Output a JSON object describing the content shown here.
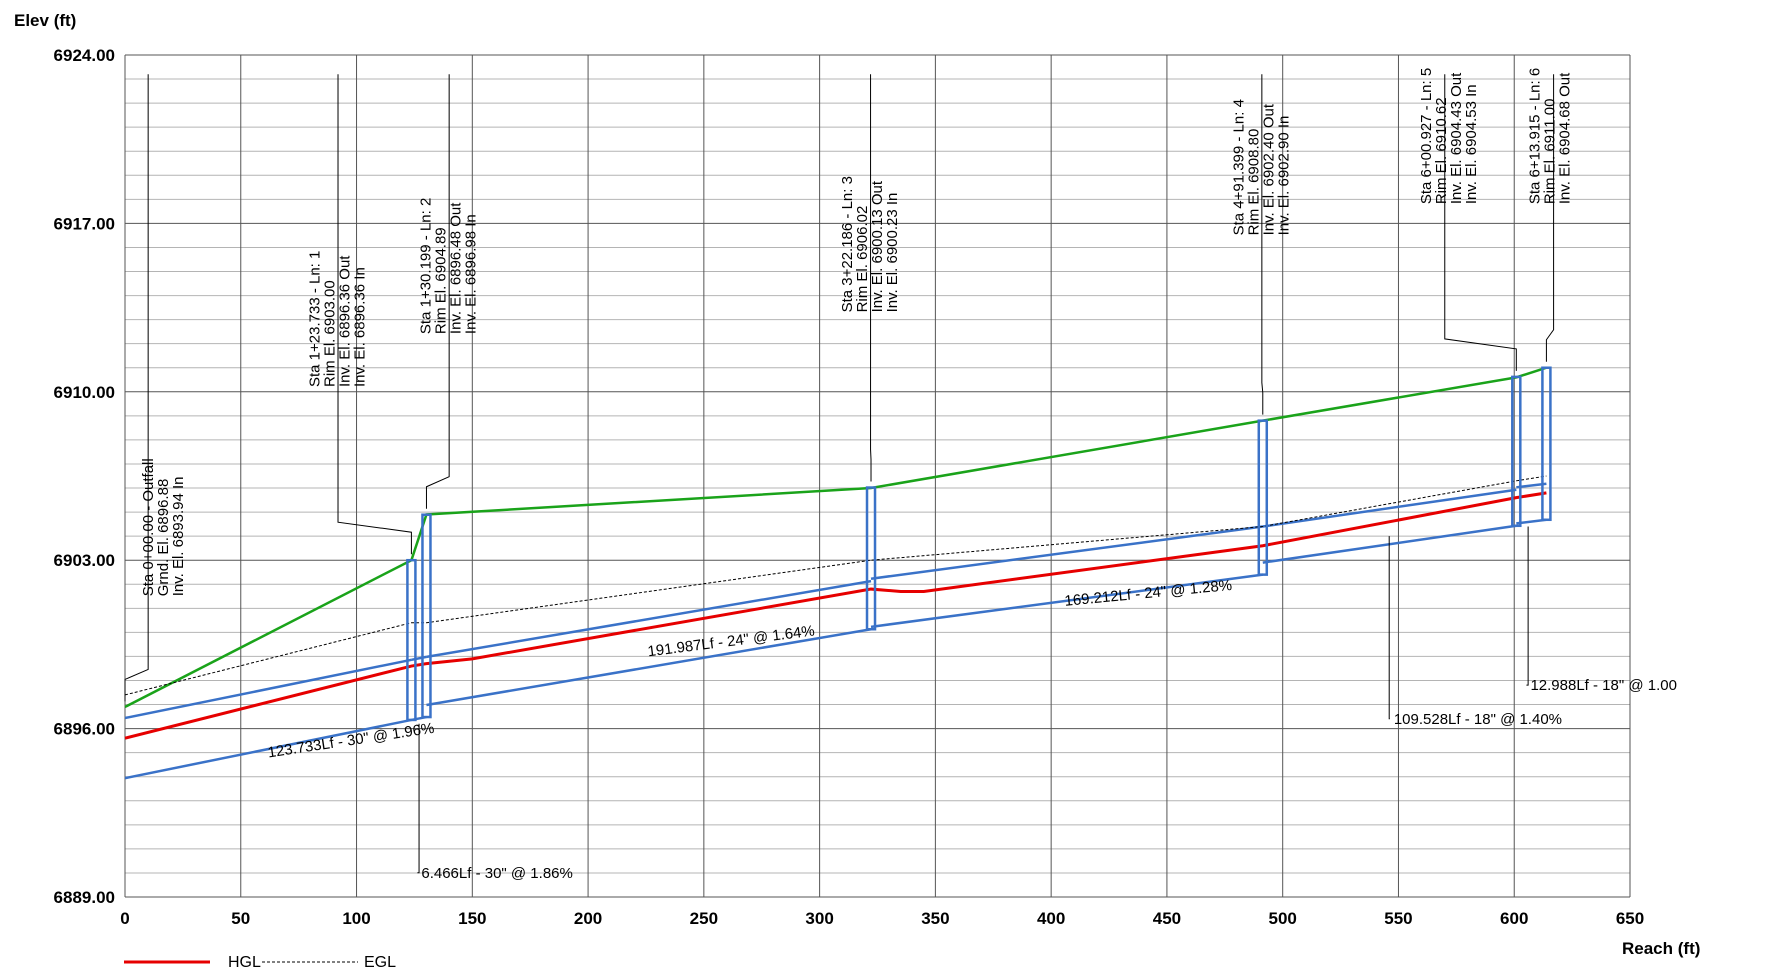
{
  "chart_data": {
    "type": "line",
    "xlabel": "Reach (ft)",
    "ylabel": "Elev (ft)",
    "xlim": [
      0,
      650
    ],
    "ylim": [
      6889,
      6924
    ],
    "x_ticks": [
      "0",
      "50",
      "100",
      "150",
      "200",
      "250",
      "300",
      "350",
      "400",
      "450",
      "500",
      "550",
      "600",
      "650"
    ],
    "y_ticks": [
      "6889.00",
      "6896.00",
      "6903.00",
      "6910.00",
      "6917.00",
      "6924.00"
    ],
    "grid": true,
    "legend": {
      "hgl": "HGL",
      "egl": "EGL",
      "placement": "bottom-left"
    },
    "colors": {
      "hgl": "#e60000",
      "egl": "#000000",
      "pipe": "#3a72c8",
      "ground": "#1aa31a",
      "grid_major": "#555555",
      "grid_minor": "#b4b4b4"
    },
    "series": [
      {
        "name": "HGL",
        "x": [
          0,
          123.7,
          130.2,
          150,
          322.2,
          335,
          345,
          491.4,
          600.9,
          613.9
        ],
        "y": [
          6895.6,
          6898.6,
          6898.7,
          6898.9,
          6901.8,
          6901.7,
          6901.7,
          6903.6,
          6905.6,
          6905.8
        ]
      },
      {
        "name": "EGL",
        "x": [
          0,
          123.7,
          130.2,
          322.2,
          491.4,
          600.9,
          613.9
        ],
        "y": [
          6897.4,
          6900.4,
          6900.4,
          6903.0,
          6904.4,
          6906.3,
          6906.5
        ]
      }
    ],
    "ground": {
      "x": [
        0,
        123.7,
        130.2,
        322.2,
        491.4,
        600.9,
        613.9
      ],
      "y": [
        6896.9,
        6903.0,
        6904.9,
        6906.0,
        6908.8,
        6910.6,
        6911.0
      ]
    },
    "pipes": [
      {
        "x1": 0,
        "x2": 123.7,
        "down_inv": 6893.94,
        "up_inv": 6896.36,
        "diam_ft": 2.5
      },
      {
        "x1": 123.7,
        "x2": 130.2,
        "down_inv": 6896.36,
        "up_inv": 6896.48,
        "diam_ft": 2.5
      },
      {
        "x1": 130.2,
        "x2": 322.2,
        "down_inv": 6896.98,
        "up_inv": 6900.13,
        "diam_ft": 2.0
      },
      {
        "x1": 322.2,
        "x2": 491.4,
        "down_inv": 6900.23,
        "up_inv": 6902.4,
        "diam_ft": 2.0
      },
      {
        "x1": 491.4,
        "x2": 600.9,
        "down_inv": 6902.9,
        "up_inv": 6904.43,
        "diam_ft": 1.5
      },
      {
        "x1": 600.9,
        "x2": 613.9,
        "down_inv": 6904.53,
        "up_inv": 6904.68,
        "diam_ft": 1.5
      }
    ],
    "structures": [
      {
        "x": 0,
        "bottom": 6893.94,
        "top": 6896.88,
        "label_x": 10,
        "text_x": 12,
        "lines": [
          "Sta 0+00.00 - Outfall",
          "Grnd. El. 6896.88",
          "Inv. El. 6893.94 In"
        ]
      },
      {
        "x": 123.7,
        "bottom": 6896.36,
        "top": 6903.0,
        "label_x": 92,
        "text_x": 84,
        "lines": [
          "Sta 1+23.733 - Ln: 1",
          "Rim El. 6903.00",
          "Inv. El. 6896.36 Out",
          "Inv. El. 6896.36 In"
        ]
      },
      {
        "x": 130.2,
        "bottom": 6896.48,
        "top": 6904.89,
        "label_x": 140,
        "text_x": 132,
        "lines": [
          "Sta 1+30.199 - Ln: 2",
          "Rim El. 6904.89",
          "Inv. El. 6896.48 Out",
          "Inv. El. 6896.98 In"
        ]
      },
      {
        "x": 322.2,
        "bottom": 6900.13,
        "top": 6906.02,
        "label_x": 322,
        "text_x": 314,
        "lines": [
          "Sta 3+22.186 - Ln: 3",
          "Rim El. 6906.02",
          "Inv. El. 6900.13 Out",
          "Inv. El. 6900.23 In"
        ]
      },
      {
        "x": 491.4,
        "bottom": 6902.4,
        "top": 6908.8,
        "label_x": 491,
        "text_x": 483,
        "lines": [
          "Sta 4+91.399 - Ln: 4",
          "Rim El. 6908.80",
          "Inv. El. 6902.40 Out",
          "Inv. El. 6902.90 In"
        ]
      },
      {
        "x": 600.9,
        "bottom": 6904.43,
        "top": 6910.62,
        "label_x": 570,
        "text_x": 564,
        "lines": [
          "Sta 6+00.927 - Ln: 5",
          "Rim El. 6910.62",
          "Inv. El. 6904.43 Out",
          "Inv. El. 6904.53 In"
        ]
      },
      {
        "x": 613.9,
        "bottom": 6904.68,
        "top": 6911.0,
        "label_x": 617,
        "text_x": 611,
        "lines": [
          "Sta 6+13.915 - Ln: 6",
          "Rim El. 6911.00",
          "Inv. El. 6904.68 Out"
        ]
      }
    ],
    "pipe_labels": [
      {
        "text": "123.733Lf - 30\" @ 1.96%",
        "x": 62,
        "y": 6894.8
      },
      {
        "text": "191.987Lf - 24\" @ 1.64%",
        "x": 226,
        "y": 6899.0
      },
      {
        "text": "169.212Lf - 24\" @ 1.28%",
        "x": 406,
        "y": 6901.1
      },
      {
        "text": "6.466Lf - 30\" @ 1.86%",
        "x": 128,
        "y": 6889.8,
        "leader_x": 127,
        "leader_top": 6896.2
      },
      {
        "text": "109.528Lf - 18\" @ 1.40%",
        "x": 548,
        "y": 6896.2,
        "leader_x": 546,
        "leader_top": 6904.0
      },
      {
        "text": "12.988Lf - 18\" @ 1.00",
        "x": 607,
        "y": 6897.6,
        "leader_x": 606,
        "leader_top": 6904.4
      }
    ]
  }
}
